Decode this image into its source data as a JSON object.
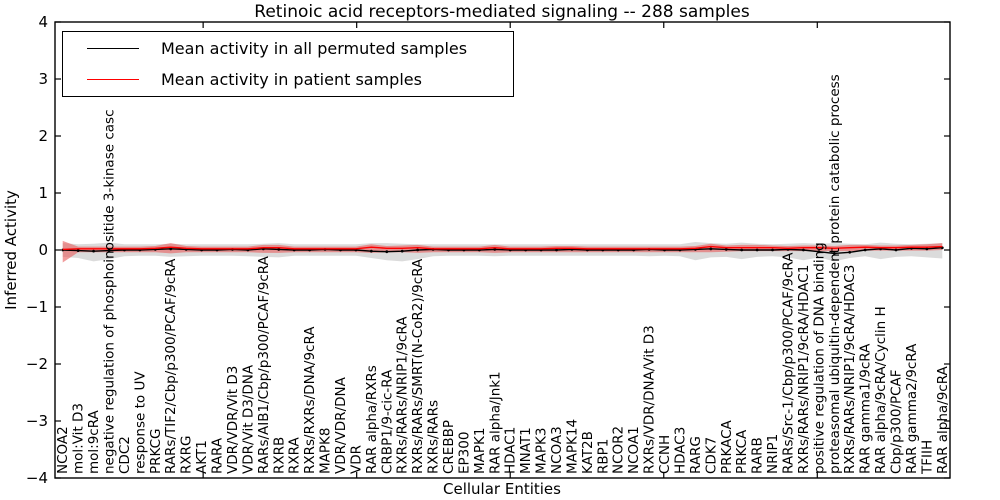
{
  "chart": {
    "title": "Retinoic acid receptors-mediated signaling -- 288 samples",
    "xlabel": "Cellular Entities",
    "ylabel": "Inferred Activity"
  },
  "chart_data": {
    "type": "line",
    "title": "Retinoic acid receptors-mediated signaling -- 288 samples",
    "xlabel": "Cellular Entities",
    "ylabel": "Inferred Activity",
    "ylim": [
      -4,
      4
    ],
    "yticks": [
      4,
      3,
      2,
      1,
      0,
      -1,
      -2,
      -3,
      -4
    ],
    "x_major_tick_indices": [
      9.1,
      19.05,
      29.0,
      38.95,
      48.9
    ],
    "grid": false,
    "legend_position": "upper left",
    "categories": [
      "NCOA2",
      "mol:Vit D3",
      "mol:9cRA",
      "negative regulation of phosphoinositide 3-kinase casc",
      "CDC2",
      "response to UV",
      "PRKCG",
      "RARs/TIF2/Cbp/p300/PCAF/9cRA",
      "RXRG",
      "AKT1",
      "RARA",
      "VDR/VDR/Vit D3",
      "VDR/Vit D3/DNA",
      "RARs/AIB1/Cbp/p300/PCAF/9cRA",
      "RXRB",
      "RXRA",
      "RXRs/RXRs/DNA/9cRA",
      "MAPK8",
      "VDR/VDR/DNA",
      "VDR",
      "RAR alpha/RXRs",
      "CRBP1/9-cic-RA",
      "RXRs/RARs/NRIP1/9cRA",
      "RXRs/RARs/SMRT(N-CoR2)/9cRA",
      "RXRs/RARs",
      "CREBBP",
      "EP300",
      "MAPK1",
      "RAR alpha/Jnk1",
      "HDAC1",
      "MNAT1",
      "MAPK3",
      "NCOA3",
      "MAPK14",
      "KAT2B",
      "RBP1",
      "NCOR2",
      "NCOA1",
      "RXRs/VDR/DNA/Vit D3",
      "CCNH",
      "HDAC3",
      "RARG",
      "CDK7",
      "PRKACA",
      "PRKCA",
      "RARB",
      "NRIP1",
      "RARs/Src-1/Cbp/p300/PCAF/9cRA",
      "RXRs/RARs/NRIP1/9cRA/HDAC1",
      "positive regulation of DNA binding",
      "proteasomal ubiquitin-dependent protein catabolic process",
      "RXRs/RARs/NRIP1/9cRA/HDAC3",
      "RAR gamma1/9cRA",
      "RAR alpha/9cRA/Cyclin H",
      "Cbp/p300/PCAF",
      "RAR gamma2/9cRA",
      "TFIIH",
      "RAR alpha/9cRA"
    ],
    "series": [
      {
        "name": "Mean activity in all permuted samples",
        "color": "#000000",
        "marker": "point",
        "band_color": "#c8c8c8",
        "band_opacity": 0.65,
        "values": [
          0.0,
          -0.01,
          -0.02,
          -0.01,
          0.0,
          0.0,
          0.01,
          0.02,
          0.01,
          0.0,
          0.0,
          0.01,
          0.0,
          0.02,
          0.01,
          0.0,
          0.0,
          0.01,
          0.0,
          0.0,
          -0.02,
          -0.03,
          -0.02,
          0.0,
          0.01,
          0.0,
          0.0,
          0.0,
          0.01,
          0.0,
          0.0,
          0.0,
          0.0,
          0.01,
          0.0,
          0.0,
          0.0,
          0.0,
          0.01,
          0.0,
          0.0,
          0.01,
          0.02,
          0.01,
          0.0,
          0.0,
          0.0,
          0.01,
          0.0,
          -0.03,
          -0.06,
          -0.04,
          0.0,
          0.02,
          0.0,
          0.03,
          0.02,
          0.04
        ],
        "band_upper": [
          0.12,
          0.1,
          0.11,
          0.13,
          0.1,
          0.1,
          0.1,
          0.11,
          0.1,
          0.1,
          0.1,
          0.1,
          0.1,
          0.11,
          0.12,
          0.1,
          0.1,
          0.1,
          0.1,
          0.1,
          0.12,
          0.12,
          0.11,
          0.1,
          0.1,
          0.1,
          0.1,
          0.1,
          0.1,
          0.1,
          0.1,
          0.1,
          0.1,
          0.1,
          0.1,
          0.1,
          0.1,
          0.1,
          0.1,
          0.1,
          0.1,
          0.14,
          0.12,
          0.11,
          0.13,
          0.11,
          0.1,
          0.11,
          0.12,
          0.11,
          0.12,
          0.11,
          0.1,
          0.13,
          0.11,
          0.1,
          0.11,
          0.12
        ],
        "band_lower": [
          -0.12,
          -0.14,
          -0.2,
          -0.16,
          -0.11,
          -0.1,
          -0.1,
          -0.12,
          -0.11,
          -0.1,
          -0.1,
          -0.1,
          -0.11,
          -0.12,
          -0.13,
          -0.1,
          -0.1,
          -0.1,
          -0.1,
          -0.1,
          -0.14,
          -0.18,
          -0.2,
          -0.16,
          -0.11,
          -0.1,
          -0.1,
          -0.1,
          -0.11,
          -0.1,
          -0.1,
          -0.1,
          -0.1,
          -0.1,
          -0.1,
          -0.1,
          -0.1,
          -0.1,
          -0.11,
          -0.1,
          -0.11,
          -0.18,
          -0.13,
          -0.12,
          -0.16,
          -0.12,
          -0.11,
          -0.13,
          -0.18,
          -0.13,
          -0.2,
          -0.14,
          -0.11,
          -0.16,
          -0.12,
          -0.11,
          -0.13,
          -0.15
        ]
      },
      {
        "name": "Mean activity in patient samples",
        "color": "#ff0000",
        "marker": "none",
        "band_color": "#e85c5c",
        "band_opacity": 0.6,
        "values": [
          0.01,
          0.02,
          0.02,
          0.02,
          0.02,
          0.02,
          0.03,
          0.05,
          0.03,
          0.02,
          0.02,
          0.02,
          0.02,
          0.04,
          0.04,
          0.02,
          0.02,
          0.02,
          0.02,
          0.02,
          0.05,
          0.03,
          0.03,
          0.04,
          0.02,
          0.02,
          0.02,
          0.02,
          0.04,
          0.02,
          0.02,
          0.02,
          0.03,
          0.03,
          0.02,
          0.02,
          0.02,
          0.02,
          0.02,
          0.02,
          0.02,
          0.03,
          0.06,
          0.04,
          0.04,
          0.04,
          0.04,
          0.03,
          0.04,
          0.04,
          0.03,
          0.04,
          0.05,
          0.04,
          0.04,
          0.05,
          0.05,
          0.06
        ],
        "band_upper": [
          0.16,
          0.06,
          0.06,
          0.06,
          0.06,
          0.06,
          0.07,
          0.12,
          0.07,
          0.06,
          0.06,
          0.06,
          0.06,
          0.09,
          0.09,
          0.06,
          0.06,
          0.06,
          0.06,
          0.06,
          0.1,
          0.07,
          0.08,
          0.09,
          0.06,
          0.06,
          0.06,
          0.06,
          0.09,
          0.06,
          0.06,
          0.06,
          0.07,
          0.07,
          0.06,
          0.06,
          0.06,
          0.06,
          0.06,
          0.06,
          0.06,
          0.07,
          0.11,
          0.08,
          0.09,
          0.09,
          0.08,
          0.07,
          0.08,
          0.08,
          0.07,
          0.09,
          0.09,
          0.08,
          0.08,
          0.09,
          0.1,
          0.12
        ],
        "band_lower": [
          -0.22,
          -0.04,
          -0.04,
          -0.04,
          -0.04,
          -0.04,
          -0.04,
          -0.06,
          -0.04,
          -0.04,
          -0.04,
          -0.04,
          -0.04,
          -0.05,
          -0.05,
          -0.04,
          -0.04,
          -0.04,
          -0.04,
          -0.04,
          -0.05,
          -0.04,
          -0.04,
          -0.05,
          -0.04,
          -0.04,
          -0.04,
          -0.04,
          -0.05,
          -0.04,
          -0.04,
          -0.04,
          -0.04,
          -0.04,
          -0.04,
          -0.04,
          -0.04,
          -0.04,
          -0.04,
          -0.04,
          -0.04,
          -0.04,
          -0.04,
          -0.03,
          -0.02,
          -0.02,
          -0.02,
          -0.02,
          -0.02,
          -0.02,
          -0.02,
          -0.02,
          -0.01,
          -0.01,
          -0.01,
          -0.01,
          -0.01,
          0.0
        ]
      }
    ]
  }
}
